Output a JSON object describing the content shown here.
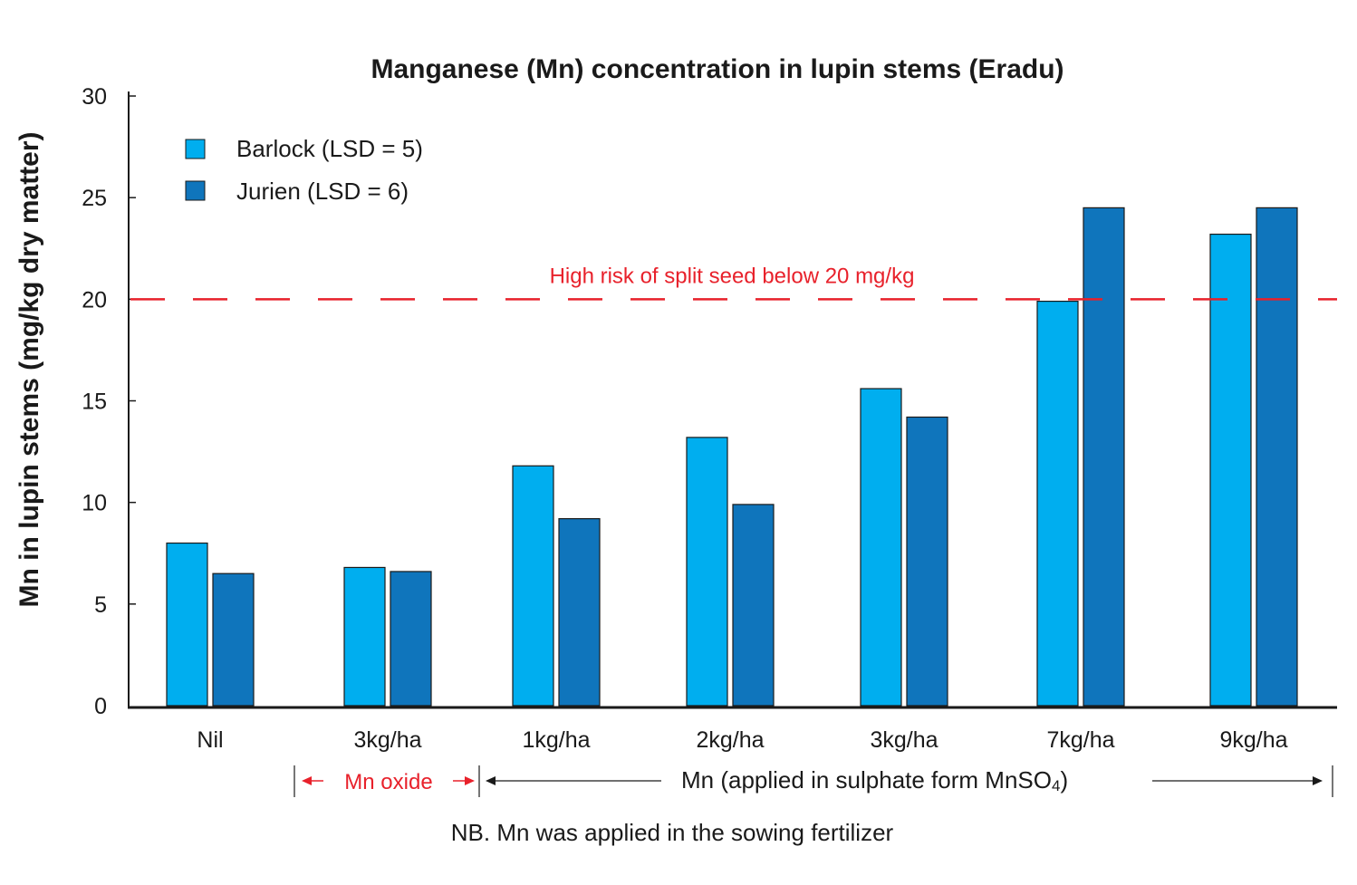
{
  "chart_data": {
    "type": "bar",
    "title": "Manganese (Mn) concentration in lupin stems (Eradu)",
    "ylabel": "Mn in lupin stems (mg/kg dry matter)",
    "xlabel": "",
    "ylim": [
      0,
      30
    ],
    "yticks": [
      "0",
      "5",
      "10",
      "15",
      "20",
      "25",
      "30"
    ],
    "categories": [
      "Nil",
      "3kg/ha",
      "1kg/ha",
      "2kg/ha",
      "3kg/ha",
      "7kg/ha",
      "9kg/ha"
    ],
    "category_colors": [
      "#1a1a1a",
      "#e8212b",
      "#1a1a1a",
      "#1a1a1a",
      "#1a1a1a",
      "#1a1a1a",
      "#1a1a1a"
    ],
    "series": [
      {
        "name": "Barlock (LSD = 5)",
        "color": "#00aeef",
        "values": [
          8.0,
          6.8,
          11.8,
          13.2,
          15.6,
          19.9,
          23.2
        ]
      },
      {
        "name": "Jurien (LSD = 6)",
        "color": "#0f75bc",
        "values": [
          6.5,
          6.6,
          9.2,
          9.9,
          14.2,
          24.5,
          24.5
        ]
      }
    ],
    "legend_position": "top-left",
    "grid": false,
    "reference_line": {
      "value": 20,
      "label": "High risk of split seed below 20 mg/kg",
      "color": "#e8212b",
      "style": "dashed"
    },
    "annotations": {
      "oxide_label": "Mn oxide",
      "oxide_color": "#e8212b",
      "sulphate_label_prefix": "Mn (applied in sulphate form MnSO",
      "sulphate_subscript": "4",
      "sulphate_label_suffix": ")",
      "note": "NB. Mn was applied in the sowing fertilizer"
    }
  }
}
